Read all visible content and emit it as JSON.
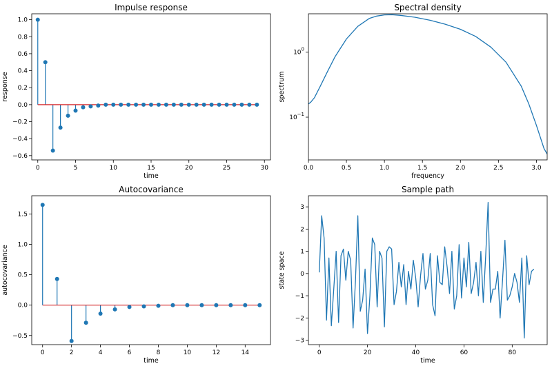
{
  "chart_data": [
    {
      "type": "stem",
      "title": "Impulse response",
      "xlabel": "time",
      "ylabel": "response",
      "xlim": [
        -0.8,
        30.8
      ],
      "ylim": [
        -0.65,
        1.07
      ],
      "xticks": [
        0,
        5,
        10,
        15,
        20,
        25,
        30
      ],
      "yticks": [
        -0.6,
        -0.4,
        -0.2,
        0.0,
        0.2,
        0.4,
        0.6,
        0.8,
        1.0
      ],
      "ytick_labels": [
        "−0.6",
        "−0.4",
        "−0.2",
        "0.0",
        "0.2",
        "0.4",
        "0.6",
        "0.8",
        "1.0"
      ],
      "x": [
        0,
        1,
        2,
        3,
        4,
        5,
        6,
        7,
        8,
        9,
        10,
        11,
        12,
        13,
        14,
        15,
        16,
        17,
        18,
        19,
        20,
        21,
        22,
        23,
        24,
        25,
        26,
        27,
        28,
        29
      ],
      "values": [
        1.0,
        0.5,
        -0.54,
        -0.27,
        -0.13,
        -0.07,
        -0.03,
        -0.02,
        -0.01,
        0.0,
        0.0,
        0.0,
        0.0,
        0.0,
        0.0,
        0.0,
        0.0,
        0.0,
        0.0,
        0.0,
        0.0,
        0.0,
        0.0,
        0.0,
        0.0,
        0.0,
        0.0,
        0.0,
        0.0,
        0.0
      ],
      "stem_color": "#1f77b4",
      "baseline_color": "#d62728"
    },
    {
      "type": "line",
      "title": "Spectral density",
      "xlabel": "frequency",
      "ylabel": "spectrum",
      "yscale": "log",
      "xlim": [
        0,
        3.14159
      ],
      "ylim": [
        0.022,
        3.9
      ],
      "xticks": [
        0.0,
        0.5,
        1.0,
        1.5,
        2.0,
        2.5,
        3.0
      ],
      "xtick_labels": [
        "0.0",
        "0.5",
        "1.0",
        "1.5",
        "2.0",
        "2.5",
        "3.0"
      ],
      "yticks": [
        0.1,
        1.0
      ],
      "ytick_base": "10",
      "ytick_exponents": [
        "−1",
        "0"
      ],
      "x": [
        0.0,
        0.03,
        0.08,
        0.15,
        0.25,
        0.35,
        0.5,
        0.65,
        0.8,
        0.9,
        1.0,
        1.1,
        1.2,
        1.4,
        1.6,
        1.8,
        2.0,
        2.2,
        2.4,
        2.6,
        2.8,
        2.9,
        3.0,
        3.1,
        3.14159
      ],
      "values": [
        0.16,
        0.17,
        0.2,
        0.29,
        0.5,
        0.85,
        1.6,
        2.5,
        3.3,
        3.6,
        3.75,
        3.78,
        3.7,
        3.45,
        3.1,
        2.7,
        2.25,
        1.75,
        1.2,
        0.7,
        0.3,
        0.16,
        0.075,
        0.033,
        0.027
      ],
      "line_color": "#1f77b4"
    },
    {
      "type": "stem",
      "title": "Autocovariance",
      "xlabel": "time",
      "ylabel": "autocovariance",
      "xlim": [
        -0.75,
        15.75
      ],
      "ylim": [
        -0.65,
        1.8
      ],
      "xticks": [
        0,
        2,
        4,
        6,
        8,
        10,
        12,
        14
      ],
      "yticks": [
        -0.5,
        0.0,
        0.5,
        1.0,
        1.5
      ],
      "ytick_labels": [
        "−0.5",
        "0.0",
        "0.5",
        "1.0",
        "1.5"
      ],
      "x": [
        0,
        1,
        2,
        3,
        4,
        5,
        6,
        7,
        8,
        9,
        10,
        11,
        12,
        13,
        14,
        15
      ],
      "values": [
        1.65,
        0.43,
        -0.59,
        -0.29,
        -0.14,
        -0.07,
        -0.03,
        -0.02,
        -0.01,
        0.0,
        0.0,
        0.0,
        0.0,
        0.0,
        0.0,
        0.0
      ],
      "stem_color": "#1f77b4",
      "baseline_color": "#d62728"
    },
    {
      "type": "line",
      "title": "Sample path",
      "xlabel": "time",
      "ylabel": "state space",
      "xlim": [
        -4.5,
        94.5
      ],
      "ylim": [
        -3.2,
        3.5
      ],
      "xticks": [
        0,
        20,
        40,
        60,
        80
      ],
      "yticks": [
        -3,
        -2,
        -1,
        0,
        1,
        2,
        3
      ],
      "ytick_labels": [
        "−3",
        "−2",
        "−1",
        "0",
        "1",
        "2",
        "3"
      ],
      "x": [
        0,
        1,
        2,
        3,
        4,
        5,
        6,
        7,
        8,
        9,
        10,
        11,
        12,
        13,
        14,
        15,
        16,
        17,
        18,
        19,
        20,
        21,
        22,
        23,
        24,
        25,
        26,
        27,
        28,
        29,
        30,
        31,
        32,
        33,
        34,
        35,
        36,
        37,
        38,
        39,
        40,
        41,
        42,
        43,
        44,
        45,
        46,
        47,
        48,
        49,
        50,
        51,
        52,
        53,
        54,
        55,
        56,
        57,
        58,
        59,
        60,
        61,
        62,
        63,
        64,
        65,
        66,
        67,
        68,
        69,
        70,
        71,
        72,
        73,
        74,
        75,
        76,
        77,
        78,
        79,
        80,
        81,
        82,
        83,
        84,
        85,
        86,
        87,
        88,
        89
      ],
      "values": [
        0.05,
        2.6,
        1.6,
        -2.1,
        0.7,
        -2.35,
        -0.7,
        1.0,
        -2.2,
        0.8,
        1.1,
        -0.3,
        1.0,
        0.6,
        -2.45,
        -0.3,
        2.6,
        -1.7,
        -1.2,
        0.2,
        -2.7,
        -1.0,
        1.6,
        1.3,
        -1.5,
        1.0,
        0.7,
        -2.4,
        1.0,
        1.2,
        1.1,
        -1.4,
        -0.8,
        0.5,
        -0.6,
        0.4,
        -1.4,
        0.1,
        -0.7,
        0.6,
        -0.2,
        -1.5,
        -0.1,
        0.9,
        -0.7,
        -0.3,
        0.9,
        -1.4,
        -1.9,
        0.8,
        -0.4,
        -0.5,
        1.2,
        0.3,
        -0.9,
        1.0,
        -1.6,
        -1.0,
        1.3,
        -1.1,
        0.7,
        -0.6,
        1.4,
        -0.9,
        -0.4,
        0.5,
        -1.0,
        1.0,
        -1.3,
        0.8,
        3.2,
        -1.3,
        -0.7,
        -0.7,
        0.1,
        -2.0,
        -0.3,
        1.5,
        -1.2,
        -1.0,
        -0.6,
        0.0,
        -0.4,
        -1.3,
        0.7,
        -2.9,
        0.8,
        -0.5,
        0.1,
        0.2
      ],
      "line_color": "#1f77b4"
    }
  ]
}
